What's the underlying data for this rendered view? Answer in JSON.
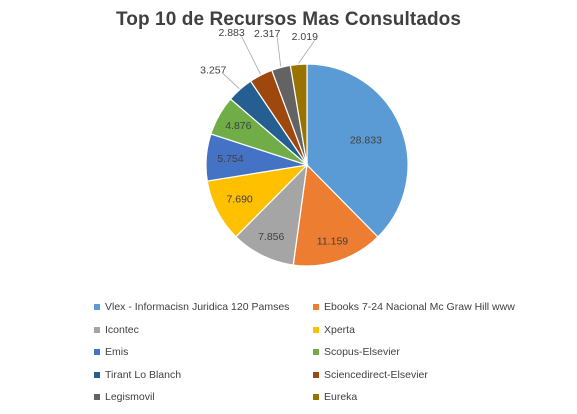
{
  "chart_data": {
    "type": "pie",
    "title": "Top 10 de Recursos Mas Consultados",
    "slices": [
      {
        "label": "Vlex - Informacisn Juridica 120 Pamses",
        "value": 28833,
        "display": "28.833",
        "color": "#5b9bd5"
      },
      {
        "label": "Ebooks 7-24 Nacional Mc Graw Hill www",
        "value": 11159,
        "display": "11.159",
        "color": "#ed7d31"
      },
      {
        "label": "Icontec",
        "value": 7856,
        "display": "7.856",
        "color": "#a5a5a5"
      },
      {
        "label": "Xperta",
        "value": 7690,
        "display": "7.690",
        "color": "#ffc000"
      },
      {
        "label": "Emis",
        "value": 5754,
        "display": "5.754",
        "color": "#4472c4"
      },
      {
        "label": "Scopus-Elsevier",
        "value": 4876,
        "display": "4.876",
        "color": "#70ad47"
      },
      {
        "label": "Tirant Lo Blanch",
        "value": 3257,
        "display": "3.257",
        "color": "#255e91"
      },
      {
        "label": "Sciencedirect-Elsevier",
        "value": 2883,
        "display": "2.883",
        "color": "#9e480e"
      },
      {
        "label": "Legismovil",
        "value": 2317,
        "display": "2.317",
        "color": "#636363"
      },
      {
        "label": "Eureka",
        "value": 2019,
        "display": "2.019",
        "color": "#997300"
      }
    ],
    "legend_position": "bottom"
  }
}
